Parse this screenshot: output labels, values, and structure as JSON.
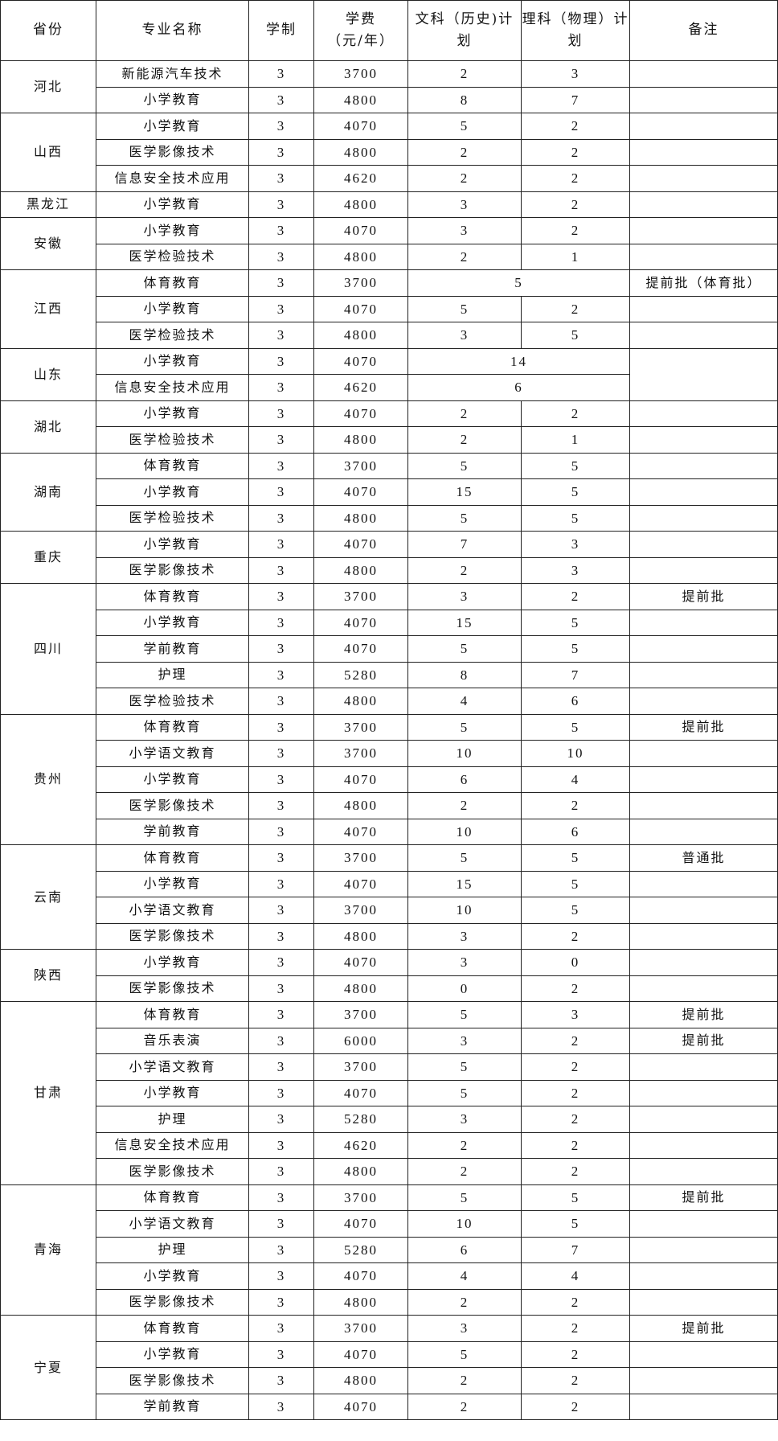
{
  "headers": [
    "省份",
    "专业名称",
    "学制",
    "学费\n（元/年）",
    "文科（历史)计划",
    "理科（物理）计划",
    "备注"
  ],
  "provinces": [
    {
      "name": "河北",
      "rows": [
        [
          "新能源汽车技术",
          "3",
          "3700",
          "2",
          "3",
          ""
        ],
        [
          "小学教育",
          "3",
          "4800",
          "8",
          "7",
          ""
        ]
      ]
    },
    {
      "name": "山西",
      "rows": [
        [
          "小学教育",
          "3",
          "4070",
          "5",
          "2",
          ""
        ],
        [
          "医学影像技术",
          "3",
          "4800",
          "2",
          "2",
          ""
        ],
        [
          "信息安全技术应用",
          "3",
          "4620",
          "2",
          "2",
          ""
        ]
      ]
    },
    {
      "name": "黑龙江",
      "rows": [
        [
          "小学教育",
          "3",
          "4800",
          "3",
          "2",
          ""
        ]
      ]
    },
    {
      "name": "安徽",
      "rows": [
        [
          "小学教育",
          "3",
          "4070",
          "3",
          "2",
          ""
        ],
        [
          "医学检验技术",
          "3",
          "4800",
          "2",
          "1",
          ""
        ]
      ]
    },
    {
      "name": "江西",
      "rows": [
        [
          "体育教育",
          "3",
          "3700",
          "5",
          null,
          "提前批（体育批）"
        ],
        [
          "小学教育",
          "3",
          "4070",
          "5",
          "2",
          ""
        ],
        [
          "医学检验技术",
          "3",
          "4800",
          "3",
          "5",
          ""
        ]
      ]
    },
    {
      "name": "山东",
      "mergeRemark": true,
      "rows": [
        [
          "小学教育",
          "3",
          "4070",
          "14",
          null,
          ""
        ],
        [
          "信息安全技术应用",
          "3",
          "4620",
          "6",
          null,
          ""
        ]
      ]
    },
    {
      "name": "湖北",
      "rows": [
        [
          "小学教育",
          "3",
          "4070",
          "2",
          "2",
          ""
        ],
        [
          "医学检验技术",
          "3",
          "4800",
          "2",
          "1",
          ""
        ]
      ]
    },
    {
      "name": "湖南",
      "rows": [
        [
          "体育教育",
          "3",
          "3700",
          "5",
          "5",
          ""
        ],
        [
          "小学教育",
          "3",
          "4070",
          "15",
          "5",
          ""
        ],
        [
          "医学检验技术",
          "3",
          "4800",
          "5",
          "5",
          ""
        ]
      ]
    },
    {
      "name": "重庆",
      "rows": [
        [
          "小学教育",
          "3",
          "4070",
          "7",
          "3",
          ""
        ],
        [
          "医学影像技术",
          "3",
          "4800",
          "2",
          "3",
          ""
        ]
      ]
    },
    {
      "name": "四川",
      "rows": [
        [
          "体育教育",
          "3",
          "3700",
          "3",
          "2",
          "提前批"
        ],
        [
          "小学教育",
          "3",
          "4070",
          "15",
          "5",
          ""
        ],
        [
          "学前教育",
          "3",
          "4070",
          "5",
          "5",
          ""
        ],
        [
          "护理",
          "3",
          "5280",
          "8",
          "7",
          ""
        ],
        [
          "医学检验技术",
          "3",
          "4800",
          "4",
          "6",
          ""
        ]
      ]
    },
    {
      "name": "贵州",
      "rows": [
        [
          "体育教育",
          "3",
          "3700",
          "5",
          "5",
          "提前批"
        ],
        [
          "小学语文教育",
          "3",
          "3700",
          "10",
          "10",
          ""
        ],
        [
          "小学教育",
          "3",
          "4070",
          "6",
          "4",
          ""
        ],
        [
          "医学影像技术",
          "3",
          "4800",
          "2",
          "2",
          ""
        ],
        [
          "学前教育",
          "3",
          "4070",
          "10",
          "6",
          ""
        ]
      ]
    },
    {
      "name": "云南",
      "rows": [
        [
          "体育教育",
          "3",
          "3700",
          "5",
          "5",
          "普通批"
        ],
        [
          "小学教育",
          "3",
          "4070",
          "15",
          "5",
          ""
        ],
        [
          "小学语文教育",
          "3",
          "3700",
          "10",
          "5",
          ""
        ],
        [
          "医学影像技术",
          "3",
          "4800",
          "3",
          "2",
          ""
        ]
      ]
    },
    {
      "name": "陕西",
      "rows": [
        [
          "小学教育",
          "3",
          "4070",
          "3",
          "0",
          ""
        ],
        [
          "医学影像技术",
          "3",
          "4800",
          "0",
          "2",
          ""
        ]
      ]
    },
    {
      "name": "甘肃",
      "rows": [
        [
          "体育教育",
          "3",
          "3700",
          "5",
          "3",
          "提前批"
        ],
        [
          "音乐表演",
          "3",
          "6000",
          "3",
          "2",
          "提前批"
        ],
        [
          "小学语文教育",
          "3",
          "3700",
          "5",
          "2",
          ""
        ],
        [
          "小学教育",
          "3",
          "4070",
          "5",
          "2",
          ""
        ],
        [
          "护理",
          "3",
          "5280",
          "3",
          "2",
          ""
        ],
        [
          "信息安全技术应用",
          "3",
          "4620",
          "2",
          "2",
          ""
        ],
        [
          "医学影像技术",
          "3",
          "4800",
          "2",
          "2",
          ""
        ]
      ]
    },
    {
      "name": "青海",
      "rows": [
        [
          "体育教育",
          "3",
          "3700",
          "5",
          "5",
          "提前批"
        ],
        [
          "小学语文教育",
          "3",
          "4070",
          "10",
          "5",
          ""
        ],
        [
          "护理",
          "3",
          "5280",
          "6",
          "7",
          ""
        ],
        [
          "小学教育",
          "3",
          "4070",
          "4",
          "4",
          ""
        ],
        [
          "医学影像技术",
          "3",
          "4800",
          "2",
          "2",
          ""
        ]
      ]
    },
    {
      "name": "宁夏",
      "rows": [
        [
          "体育教育",
          "3",
          "3700",
          "3",
          "2",
          "提前批"
        ],
        [
          "小学教育",
          "3",
          "4070",
          "5",
          "2",
          ""
        ],
        [
          "医学影像技术",
          "3",
          "4800",
          "2",
          "2",
          ""
        ],
        [
          "学前教育",
          "3",
          "4070",
          "2",
          "2",
          ""
        ]
      ]
    }
  ]
}
